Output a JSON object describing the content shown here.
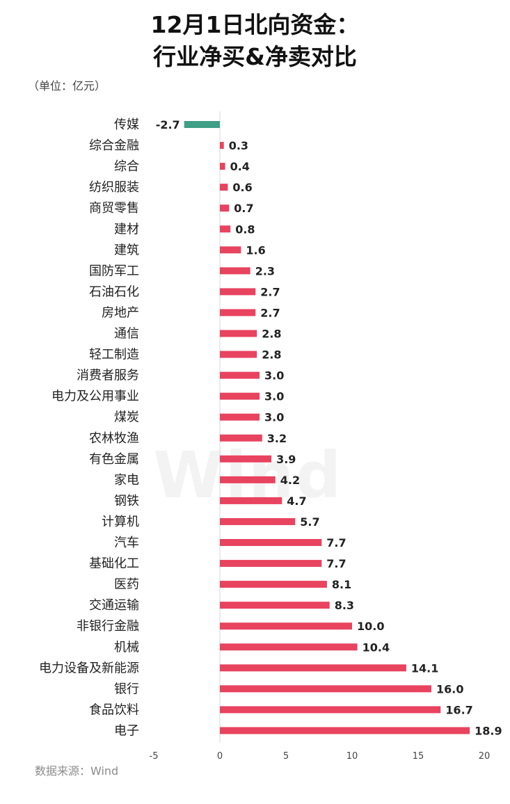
{
  "title": {
    "line1": "12月1日北向资金：",
    "line2": "行业净买&净卖对比"
  },
  "unit_label": "（单位：亿元）",
  "source_label": "数据来源：Wind",
  "watermark": "Wind",
  "colors": {
    "positive": "#e8435f",
    "negative": "#3f9e86",
    "axis": "#d9d9d9"
  },
  "chart_data": {
    "type": "bar",
    "orientation": "horizontal",
    "title": "12月1日北向资金：行业净买&净卖对比",
    "xlabel": "",
    "ylabel": "",
    "xlim": [
      -5,
      20
    ],
    "xticks": [
      -5,
      0,
      5,
      10,
      15,
      20
    ],
    "grid": false,
    "categories": [
      "传媒",
      "综合金融",
      "综合",
      "纺织服装",
      "商贸零售",
      "建材",
      "建筑",
      "国防军工",
      "石油石化",
      "房地产",
      "通信",
      "轻工制造",
      "消费者服务",
      "电力及公用事业",
      "煤炭",
      "农林牧渔",
      "有色金属",
      "家电",
      "钢铁",
      "计算机",
      "汽车",
      "基础化工",
      "医药",
      "交通运输",
      "非银行金融",
      "机械",
      "电力设备及新能源",
      "银行",
      "食品饮料",
      "电子"
    ],
    "values": [
      -2.7,
      0.3,
      0.4,
      0.6,
      0.7,
      0.8,
      1.6,
      2.3,
      2.7,
      2.7,
      2.8,
      2.8,
      3.0,
      3.0,
      3.0,
      3.2,
      3.9,
      4.2,
      4.7,
      5.7,
      7.7,
      7.7,
      8.1,
      8.3,
      10.0,
      10.4,
      14.1,
      16.0,
      16.7,
      18.9
    ],
    "value_labels": [
      "-2.7",
      "0.3",
      "0.4",
      "0.6",
      "0.7",
      "0.8",
      "1.6",
      "2.3",
      "2.7",
      "2.7",
      "2.8",
      "2.8",
      "3.0",
      "3.0",
      "3.0",
      "3.2",
      "3.9",
      "4.2",
      "4.7",
      "5.7",
      "7.7",
      "7.7",
      "8.1",
      "8.3",
      "10.0",
      "10.4",
      "14.1",
      "16.0",
      "16.7",
      "18.9"
    ]
  }
}
